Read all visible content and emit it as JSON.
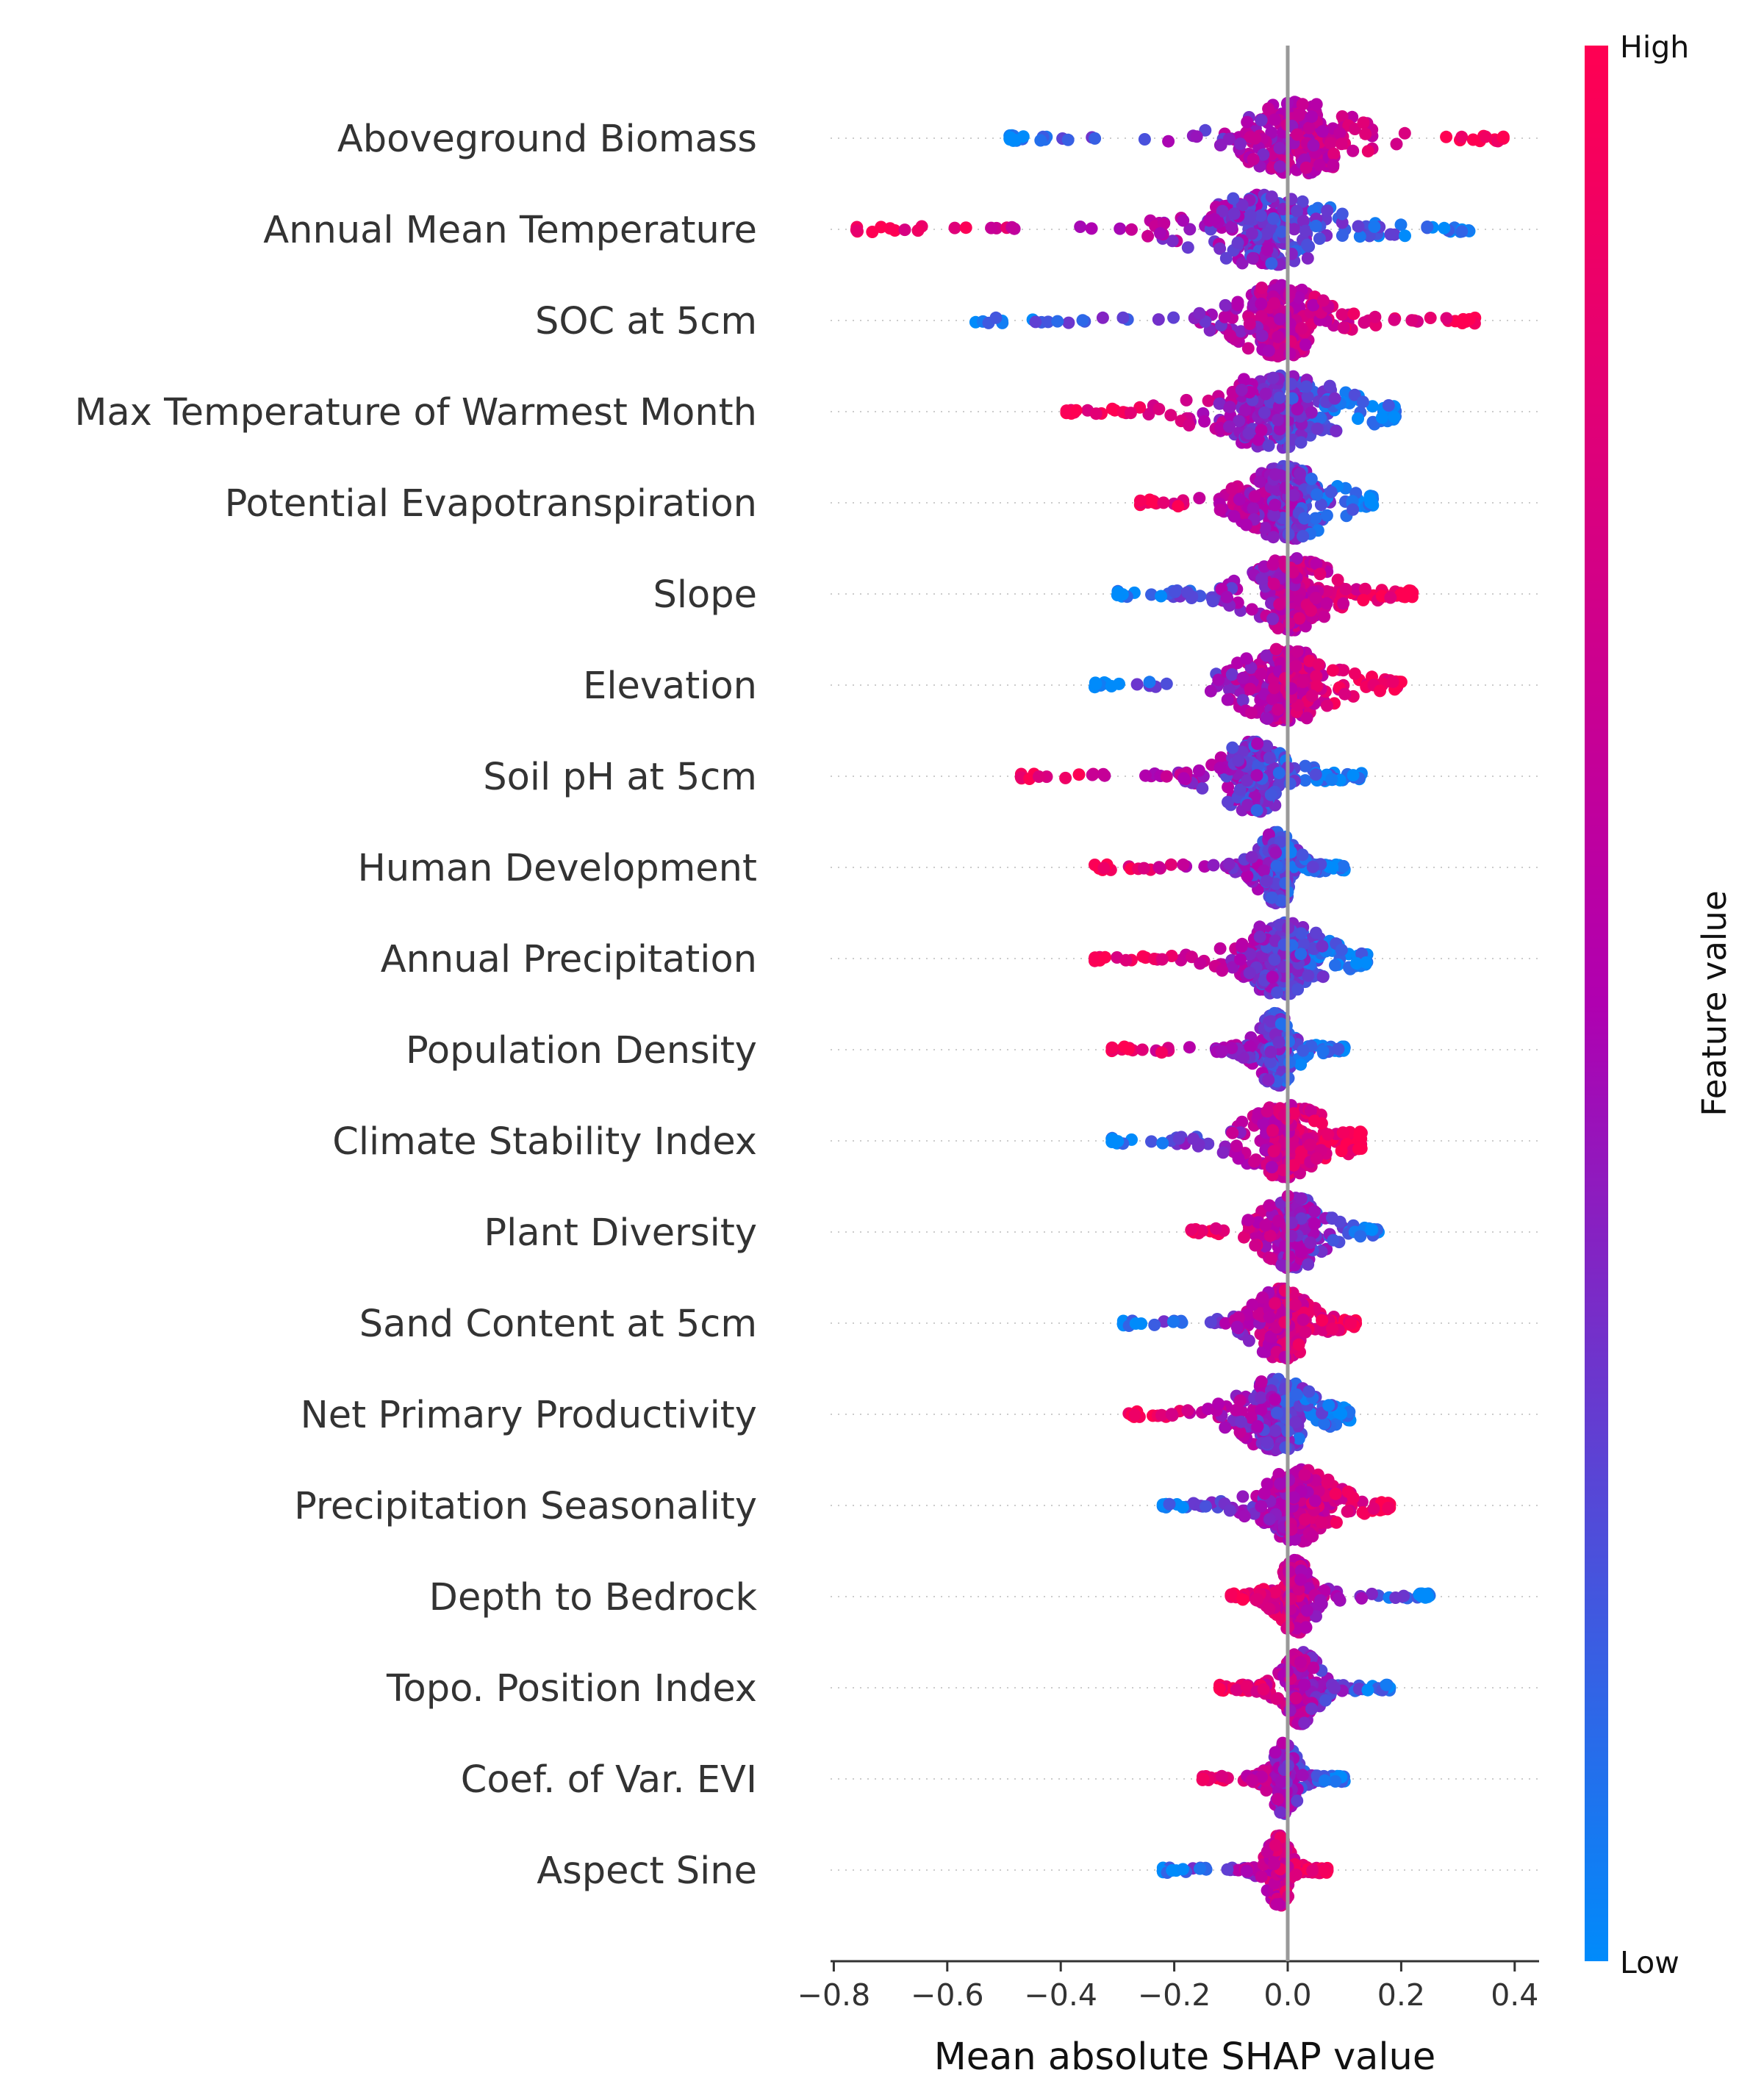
{
  "chart_data": {
    "type": "scatter",
    "subtype": "shap-beeswarm",
    "xlabel": "Mean absolute SHAP value",
    "xlim": [
      -0.82,
      0.44
    ],
    "xticks": [
      -0.8,
      -0.6,
      -0.4,
      -0.2,
      0.0,
      0.2,
      0.4
    ],
    "xtick_labels": [
      "−0.8",
      "−0.6",
      "−0.4",
      "−0.2",
      "0.0",
      "0.2",
      "0.4"
    ],
    "colorbar": {
      "title": "Feature value",
      "high_label": "High",
      "low_label": "Low",
      "high_color": "#ff0052",
      "mid_color": "#b000b0",
      "low_color": "#008bfb"
    },
    "colors": {
      "axis": "#333333",
      "zero_line": "#999999",
      "row_guide": "#cccccc"
    },
    "features": [
      {
        "name": "Aboveground Biomass",
        "min": -0.49,
        "max": 0.38,
        "p25": -0.12,
        "p75": 0.15,
        "core_width": 0.09,
        "direction": 1
      },
      {
        "name": "Annual Mean Temperature",
        "min": -0.76,
        "max": 0.32,
        "p25": -0.25,
        "p75": 0.17,
        "core_width": 0.12,
        "direction": -1
      },
      {
        "name": "SOC at 5cm",
        "min": -0.55,
        "max": 0.33,
        "p25": -0.15,
        "p75": 0.12,
        "core_width": 0.07,
        "direction": 1
      },
      {
        "name": "Max Temperature of Warmest Month",
        "min": -0.39,
        "max": 0.19,
        "p25": -0.18,
        "p75": 0.14,
        "core_width": 0.11,
        "direction": -1
      },
      {
        "name": "Potential Evapotranspiration",
        "min": -0.26,
        "max": 0.15,
        "p25": -0.1,
        "p75": 0.1,
        "core_width": 0.07,
        "direction": -1
      },
      {
        "name": "Slope",
        "min": -0.3,
        "max": 0.22,
        "p25": -0.12,
        "p75": 0.14,
        "core_width": 0.07,
        "direction": 1
      },
      {
        "name": "Elevation",
        "min": -0.34,
        "max": 0.2,
        "p25": -0.14,
        "p75": 0.13,
        "core_width": 0.08,
        "direction": 1
      },
      {
        "name": "Soil pH at 5cm",
        "min": -0.47,
        "max": 0.13,
        "p25": -0.2,
        "p75": 0.08,
        "core_width": 0.06,
        "direction": -1
      },
      {
        "name": "Human Development",
        "min": -0.34,
        "max": 0.1,
        "p25": -0.1,
        "p75": 0.06,
        "core_width": 0.03,
        "direction": -1
      },
      {
        "name": "Annual Precipitation",
        "min": -0.34,
        "max": 0.14,
        "p25": -0.12,
        "p75": 0.1,
        "core_width": 0.07,
        "direction": -1
      },
      {
        "name": "Population Density",
        "min": -0.31,
        "max": 0.1,
        "p25": -0.1,
        "p75": 0.06,
        "core_width": 0.03,
        "direction": -1
      },
      {
        "name": "Climate Stability Index",
        "min": -0.31,
        "max": 0.13,
        "p25": -0.1,
        "p75": 0.1,
        "core_width": 0.07,
        "direction": 1
      },
      {
        "name": "Plant Diversity",
        "min": -0.17,
        "max": 0.16,
        "p25": -0.08,
        "p75": 0.1,
        "core_width": 0.05,
        "direction": -1
      },
      {
        "name": "Sand Content at 5cm",
        "min": -0.29,
        "max": 0.12,
        "p25": -0.1,
        "p75": 0.08,
        "core_width": 0.05,
        "direction": 1
      },
      {
        "name": "Net Primary Productivity",
        "min": -0.28,
        "max": 0.11,
        "p25": -0.12,
        "p75": 0.08,
        "core_width": 0.06,
        "direction": -1
      },
      {
        "name": "Precipitation Seasonality",
        "min": -0.22,
        "max": 0.18,
        "p25": -0.08,
        "p75": 0.12,
        "core_width": 0.06,
        "direction": 1
      },
      {
        "name": "Depth to Bedrock",
        "min": -0.1,
        "max": 0.25,
        "p25": -0.05,
        "p75": 0.08,
        "core_width": 0.03,
        "direction": -1
      },
      {
        "name": "Topo. Position Index",
        "min": -0.12,
        "max": 0.18,
        "p25": -0.05,
        "p75": 0.1,
        "core_width": 0.03,
        "direction": -1
      },
      {
        "name": "Coef. of Var. EVI",
        "min": -0.15,
        "max": 0.1,
        "p25": -0.08,
        "p75": 0.07,
        "core_width": 0.02,
        "direction": -1
      },
      {
        "name": "Aspect Sine",
        "min": -0.22,
        "max": 0.07,
        "p25": -0.08,
        "p75": 0.05,
        "core_width": 0.02,
        "direction": 1
      }
    ]
  }
}
